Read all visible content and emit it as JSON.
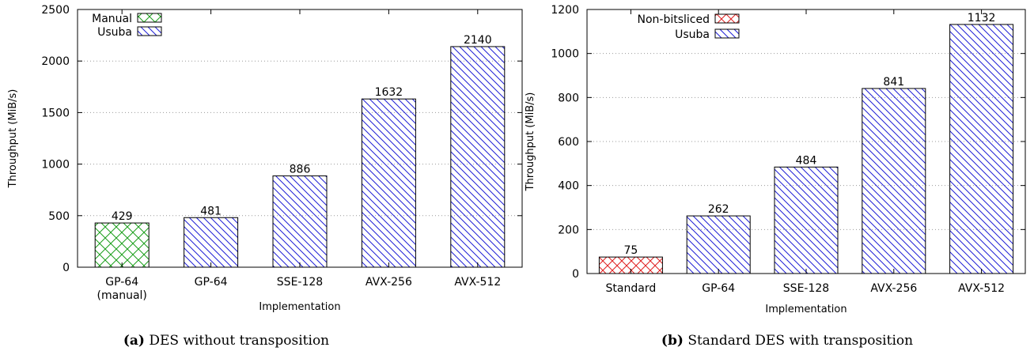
{
  "chart_data": [
    {
      "type": "bar",
      "caption_label": "(a)",
      "caption_text": "DES without transposition",
      "xlabel": "Implementation",
      "ylabel": "Throughput (MiB/s)",
      "ylim": [
        0,
        2500
      ],
      "yticks": [
        0,
        500,
        1000,
        1500,
        2000,
        2500
      ],
      "grid": true,
      "legend_position": "top-left",
      "legend": [
        {
          "name": "Manual",
          "color": "#1a9e1a",
          "pattern": "crosshatch"
        },
        {
          "name": "Usuba",
          "color": "#1f1fd6",
          "pattern": "diagonal"
        }
      ],
      "categories": [
        "GP-64\n(manual)",
        "GP-64",
        "SSE-128",
        "AVX-256",
        "AVX-512"
      ],
      "values": [
        429,
        481,
        886,
        1632,
        2140
      ],
      "series_of_bar": [
        "Manual",
        "Usuba",
        "Usuba",
        "Usuba",
        "Usuba"
      ]
    },
    {
      "type": "bar",
      "caption_label": "(b)",
      "caption_text": "Standard DES with transposition",
      "xlabel": "Implementation",
      "ylabel": "Throughput (MiB/s)",
      "ylim": [
        0,
        1200
      ],
      "yticks": [
        0,
        200,
        400,
        600,
        800,
        1000,
        1200
      ],
      "grid": true,
      "legend_position": "top-left",
      "legend": [
        {
          "name": "Non-bitsliced",
          "color": "#e02020",
          "pattern": "crosshatch"
        },
        {
          "name": "Usuba",
          "color": "#1f1fd6",
          "pattern": "diagonal"
        }
      ],
      "categories": [
        "Standard",
        "GP-64",
        "SSE-128",
        "AVX-256",
        "AVX-512"
      ],
      "values": [
        75,
        262,
        484,
        841,
        1132
      ],
      "series_of_bar": [
        "Non-bitsliced",
        "Usuba",
        "Usuba",
        "Usuba",
        "Usuba"
      ]
    }
  ]
}
